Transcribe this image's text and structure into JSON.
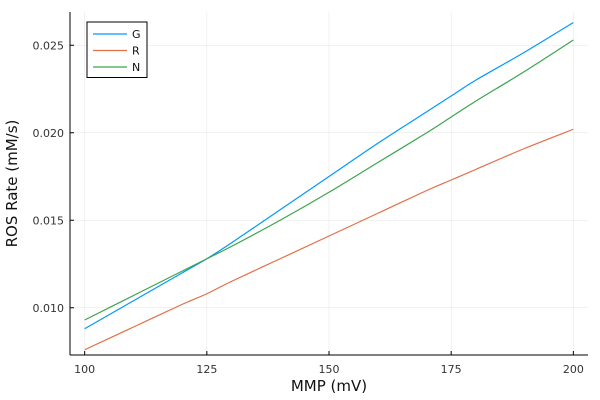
{
  "chart_data": {
    "type": "line",
    "title": "",
    "xlabel": "MMP (mV)",
    "ylabel": "ROS Rate (mM/s)",
    "xlim": [
      97,
      203
    ],
    "ylim": [
      0.0073,
      0.0269
    ],
    "xticks": [
      100,
      125,
      150,
      175,
      200
    ],
    "xtick_labels": [
      "100",
      "125",
      "150",
      "175",
      "200"
    ],
    "yticks": [
      0.01,
      0.015,
      0.02,
      0.025
    ],
    "ytick_labels": [
      "0.010",
      "0.015",
      "0.020",
      "0.025"
    ],
    "grid": true,
    "legend_position": "top-left",
    "x": [
      100,
      110,
      120,
      125,
      130,
      140,
      150,
      160,
      170,
      175,
      180,
      190,
      200
    ],
    "series": [
      {
        "name": "G",
        "color": "#009af9",
        "values": [
          0.0088,
          0.0104,
          0.012,
          0.0128,
          0.0137,
          0.0156,
          0.0175,
          0.0194,
          0.0212,
          0.0221,
          0.023,
          0.0246,
          0.0263
        ]
      },
      {
        "name": "R",
        "color": "#e26f46",
        "values": [
          0.0076,
          0.0089,
          0.0102,
          0.0108,
          0.0115,
          0.0128,
          0.0141,
          0.0154,
          0.0167,
          0.0173,
          0.0179,
          0.0191,
          0.0202
        ]
      },
      {
        "name": "N",
        "color": "#3da44d",
        "values": [
          0.0093,
          0.0107,
          0.0121,
          0.0128,
          0.0135,
          0.015,
          0.0166,
          0.0183,
          0.02,
          0.0209,
          0.0218,
          0.0235,
          0.0253
        ]
      }
    ]
  }
}
